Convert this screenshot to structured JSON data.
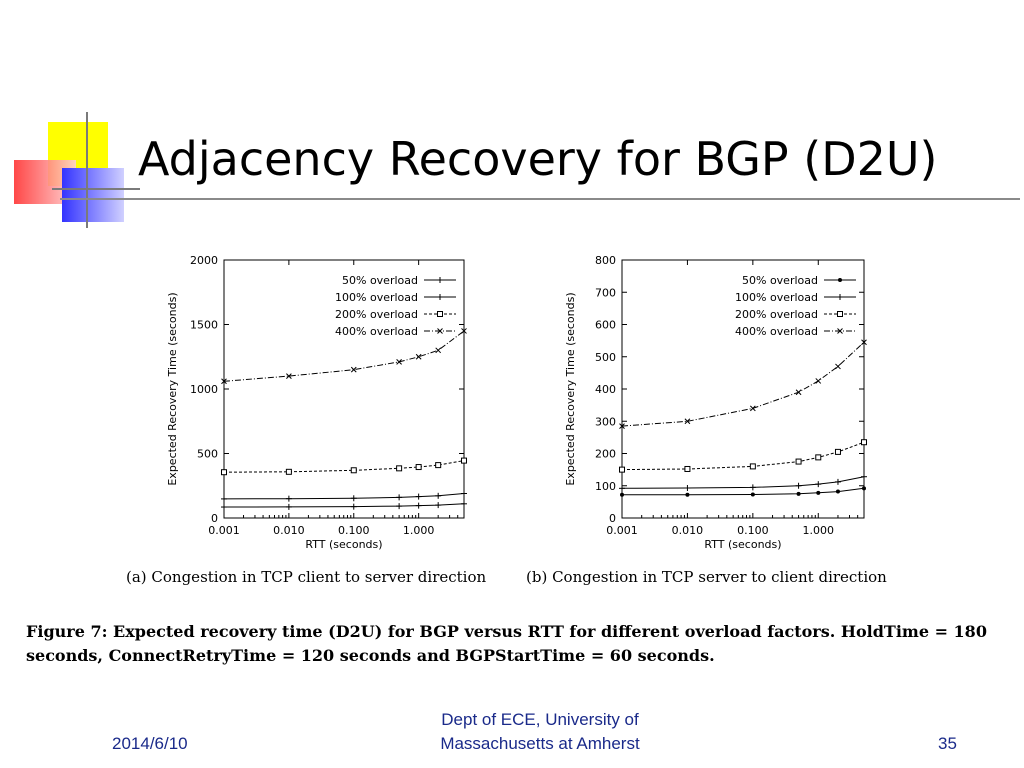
{
  "slide": {
    "title": "Adjacency Recovery for BGP (D2U)",
    "footer_date": "2014/6/10",
    "footer_org_line1": "Dept of ECE, University of",
    "footer_org_line2": "Massachusetts at Amherst",
    "footer_page": "35",
    "figure_caption": "Figure 7: Expected recovery time (D2U) for BGP versus RTT for different overload factors. HoldTime = 180 seconds, ConnectRetryTime = 120 seconds and BGPStartTime = 60 seconds."
  },
  "colors": {
    "footer_text": "#1a2a8a",
    "deco_yellow": "#ffff00",
    "deco_red": "#ff3333",
    "deco_blue": "#3333ff"
  },
  "chart_data": [
    {
      "type": "line",
      "caption": "(a) Congestion in TCP client to server direction",
      "xlabel": "RTT (seconds)",
      "ylabel": "Expected Recovery Time (seconds)",
      "xscale": "log",
      "xlim": [
        0.001,
        5
      ],
      "ylim": [
        0,
        2000
      ],
      "xticks": [
        "0.001",
        "0.010",
        "0.100",
        "1.000"
      ],
      "xtick_values": [
        0.001,
        0.01,
        0.1,
        1
      ],
      "yticks": [
        "0",
        "500",
        "1000",
        "1500",
        "2000"
      ],
      "ytick_values": [
        0,
        500,
        1000,
        1500,
        2000
      ],
      "legend_position": "top-right",
      "x": [
        0.001,
        0.01,
        0.1,
        0.5,
        1,
        2,
        5
      ],
      "series": [
        {
          "name": "50% overload",
          "marker": "plus",
          "values": [
            85,
            86,
            88,
            92,
            96,
            100,
            110
          ]
        },
        {
          "name": "100% overload",
          "marker": "plus",
          "values": [
            148,
            150,
            153,
            160,
            166,
            172,
            190
          ]
        },
        {
          "name": "200% overload",
          "marker": "square",
          "values": [
            355,
            358,
            370,
            385,
            395,
            410,
            445
          ]
        },
        {
          "name": "400% overload",
          "marker": "x",
          "values": [
            1060,
            1100,
            1150,
            1210,
            1250,
            1300,
            1450
          ]
        }
      ]
    },
    {
      "type": "line",
      "caption": "(b) Congestion in TCP server to client direction",
      "xlabel": "RTT (seconds)",
      "ylabel": "Expected Recovery Time (seconds)",
      "xscale": "log",
      "xlim": [
        0.001,
        5
      ],
      "ylim": [
        0,
        800
      ],
      "xticks": [
        "0.001",
        "0.010",
        "0.100",
        "1.000"
      ],
      "xtick_values": [
        0.001,
        0.01,
        0.1,
        1
      ],
      "yticks": [
        "0",
        "100",
        "200",
        "300",
        "400",
        "500",
        "600",
        "700",
        "800"
      ],
      "ytick_values": [
        0,
        100,
        200,
        300,
        400,
        500,
        600,
        700,
        800
      ],
      "legend_position": "top-right",
      "x": [
        0.001,
        0.01,
        0.1,
        0.5,
        1,
        2,
        5
      ],
      "series": [
        {
          "name": "50% overload",
          "marker": "dot",
          "values": [
            72,
            72,
            73,
            75,
            78,
            82,
            92
          ]
        },
        {
          "name": "100% overload",
          "marker": "plus",
          "values": [
            92,
            93,
            95,
            100,
            105,
            112,
            128
          ]
        },
        {
          "name": "200% overload",
          "marker": "square",
          "values": [
            150,
            152,
            160,
            175,
            188,
            205,
            235
          ]
        },
        {
          "name": "400% overload",
          "marker": "x",
          "values": [
            285,
            300,
            340,
            390,
            425,
            470,
            545
          ]
        }
      ]
    }
  ]
}
